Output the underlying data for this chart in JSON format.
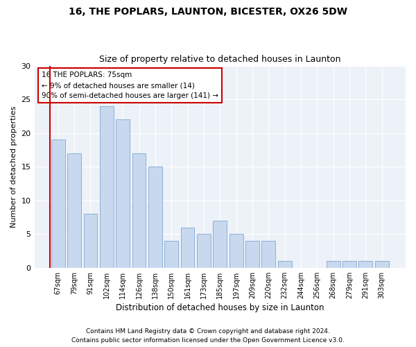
{
  "title1": "16, THE POPLARS, LAUNTON, BICESTER, OX26 5DW",
  "title2": "Size of property relative to detached houses in Launton",
  "xlabel": "Distribution of detached houses by size in Launton",
  "ylabel": "Number of detached properties",
  "categories": [
    "67sqm",
    "79sqm",
    "91sqm",
    "102sqm",
    "114sqm",
    "126sqm",
    "138sqm",
    "150sqm",
    "161sqm",
    "173sqm",
    "185sqm",
    "197sqm",
    "209sqm",
    "220sqm",
    "232sqm",
    "244sqm",
    "256sqm",
    "268sqm",
    "279sqm",
    "291sqm",
    "303sqm"
  ],
  "values": [
    19,
    17,
    8,
    24,
    22,
    17,
    15,
    4,
    6,
    5,
    7,
    5,
    4,
    4,
    1,
    0,
    0,
    1,
    1,
    1,
    1
  ],
  "bar_color": "#c8d8ee",
  "bar_edge_color": "#8ab0d8",
  "marker_color": "#cc0000",
  "marker_bar_index": 0,
  "ylim": [
    0,
    30
  ],
  "yticks": [
    0,
    5,
    10,
    15,
    20,
    25,
    30
  ],
  "annotation_text": "16 THE POPLARS: 75sqm\n← 9% of detached houses are smaller (14)\n90% of semi-detached houses are larger (141) →",
  "annotation_box_edge": "#cc0000",
  "footer1": "Contains HM Land Registry data © Crown copyright and database right 2024.",
  "footer2": "Contains public sector information licensed under the Open Government Licence v3.0.",
  "bg_color": "#ffffff",
  "grid_color": "#d0d8e8"
}
